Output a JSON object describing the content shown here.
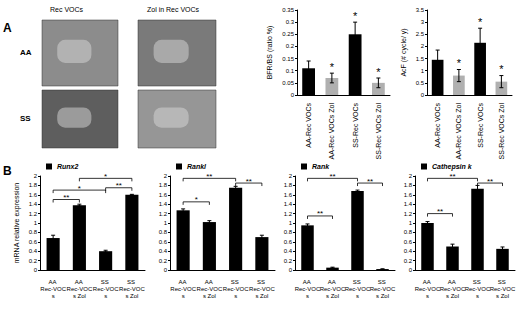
{
  "panel_labels": [
    "A",
    "B"
  ],
  "images": {
    "column_labels": [
      "Rec VOCs",
      "Zol in Rec VOCs"
    ],
    "row_labels": [
      "AA",
      "SS"
    ]
  },
  "chart_data": [
    {
      "type": "bar",
      "y_label": "BFR/BS (ratio %)",
      "categories": [
        "AA-Rec VOCs",
        "AA-Rec VOCs Zol",
        "SS-Rec VOCs",
        "SS-Rec VOCs Zol"
      ],
      "values": [
        0.11,
        0.07,
        0.25,
        0.05
      ],
      "errors": [
        0.03,
        0.02,
        0.05,
        0.02
      ],
      "colors": [
        "#000000",
        "#b0b0b0",
        "#000000",
        "#b0b0b0"
      ],
      "annotations": [
        null,
        "*",
        "*",
        "*"
      ],
      "ylim": [
        0,
        0.35
      ],
      "yticks": [
        0,
        0.05,
        0.1,
        0.15,
        0.2,
        0.25,
        0.3,
        0.35
      ],
      "grid": false
    },
    {
      "type": "bar",
      "y_label": "AcF (# cycle/ y)",
      "categories": [
        "AA-Rec VOCs",
        "AA-Rec VOCs Zol",
        "SS-Rec VOCs",
        "SS-Rec VOCs Zol"
      ],
      "values": [
        1.45,
        0.8,
        2.15,
        0.55
      ],
      "errors": [
        0.4,
        0.25,
        0.6,
        0.25
      ],
      "colors": [
        "#000000",
        "#b0b0b0",
        "#000000",
        "#b0b0b0"
      ],
      "annotations": [
        null,
        "*",
        "*",
        "*"
      ],
      "ylim": [
        0,
        3.5
      ],
      "yticks": [
        0,
        0.5,
        1,
        1.5,
        2,
        2.5,
        3,
        3.5
      ],
      "grid": false
    },
    {
      "type": "bar",
      "y_label": "mRNA relative expression",
      "categories": [
        "AA Rec-VOCs",
        "AA Rec-VOCs Zol",
        "SS Rec-VOCs",
        "SS Rec-VOCs Zol"
      ],
      "series": [
        {
          "name": "Runx2",
          "color": "#000000",
          "values": [
            0.68,
            1.38,
            0.4,
            1.6
          ],
          "errors": [
            0.06,
            0.02,
            0.02,
            0.01
          ]
        }
      ],
      "significance": [
        {
          "from": 0,
          "to": 1,
          "y": 1.5,
          "label": "**"
        },
        {
          "from": 0,
          "to": 2,
          "y": 1.7,
          "label": "*"
        },
        {
          "from": 1,
          "to": 3,
          "y": 1.95,
          "label": "*"
        },
        {
          "from": 2,
          "to": 3,
          "y": 1.75,
          "label": "**"
        }
      ],
      "ylim": [
        0,
        2
      ],
      "yticks": [
        0,
        0.2,
        0.4,
        0.6,
        0.8,
        1,
        1.2,
        1.4,
        1.6,
        1.8,
        2
      ],
      "grid": false,
      "legend": "top-left"
    },
    {
      "type": "bar",
      "categories": [
        "AA Rec-VOCs",
        "AA Rec-VOCs Zol",
        "SS Rec-VOCs",
        "SS Rec-VOCs Zol"
      ],
      "series": [
        {
          "name": "Rankl",
          "color": "#000000",
          "values": [
            1.27,
            1.02,
            1.75,
            0.7
          ],
          "errors": [
            0.03,
            0.03,
            0.03,
            0.04
          ]
        }
      ],
      "significance": [
        {
          "from": 0,
          "to": 1,
          "y": 1.45,
          "label": "*"
        },
        {
          "from": 0,
          "to": 2,
          "y": 1.95,
          "label": "**"
        },
        {
          "from": 2,
          "to": 3,
          "y": 1.85,
          "label": "**"
        }
      ],
      "ylim": [
        0,
        2
      ],
      "yticks": [
        0,
        0.2,
        0.4,
        0.6,
        0.8,
        1,
        1.2,
        1.4,
        1.6,
        1.8,
        2
      ],
      "grid": false,
      "legend": "top-left"
    },
    {
      "type": "bar",
      "categories": [
        "AA Rec-VOCs",
        "AA Rec-VOCs Zol",
        "SS Rec-VOCs",
        "SS Rec-VOCs Zol"
      ],
      "series": [
        {
          "name": "Rank",
          "color": "#000000",
          "values": [
            0.95,
            0.05,
            1.68,
            0.02
          ],
          "errors": [
            0.03,
            0.01,
            0.02,
            0.005
          ]
        }
      ],
      "significance": [
        {
          "from": 0,
          "to": 1,
          "y": 1.15,
          "label": "**"
        },
        {
          "from": 0,
          "to": 2,
          "y": 1.95,
          "label": "**"
        },
        {
          "from": 2,
          "to": 3,
          "y": 1.85,
          "label": "**"
        }
      ],
      "ylim": [
        0,
        2
      ],
      "yticks": [
        0,
        0.2,
        0.4,
        0.6,
        0.8,
        1,
        1.2,
        1.4,
        1.6,
        1.8,
        2
      ],
      "grid": false,
      "legend": "top-left"
    },
    {
      "type": "bar",
      "categories": [
        "AA Rec-VOCs",
        "AA Rec-VOCs Zol",
        "SS Rec-VOCs",
        "SS Rec-VOCs Zol"
      ],
      "series": [
        {
          "name": "Cathepsin k",
          "color": "#000000",
          "values": [
            1.0,
            0.5,
            1.73,
            0.45
          ],
          "errors": [
            0.03,
            0.05,
            0.07,
            0.04
          ]
        }
      ],
      "significance": [
        {
          "from": 0,
          "to": 1,
          "y": 1.2,
          "label": "**"
        },
        {
          "from": 0,
          "to": 2,
          "y": 1.95,
          "label": "**"
        },
        {
          "from": 2,
          "to": 3,
          "y": 1.85,
          "label": "**"
        }
      ],
      "ylim": [
        0,
        2
      ],
      "yticks": [
        0,
        0.2,
        0.4,
        0.6,
        0.8,
        1,
        1.2,
        1.4,
        1.6,
        1.8,
        2
      ],
      "grid": false,
      "legend": "top-left"
    }
  ]
}
